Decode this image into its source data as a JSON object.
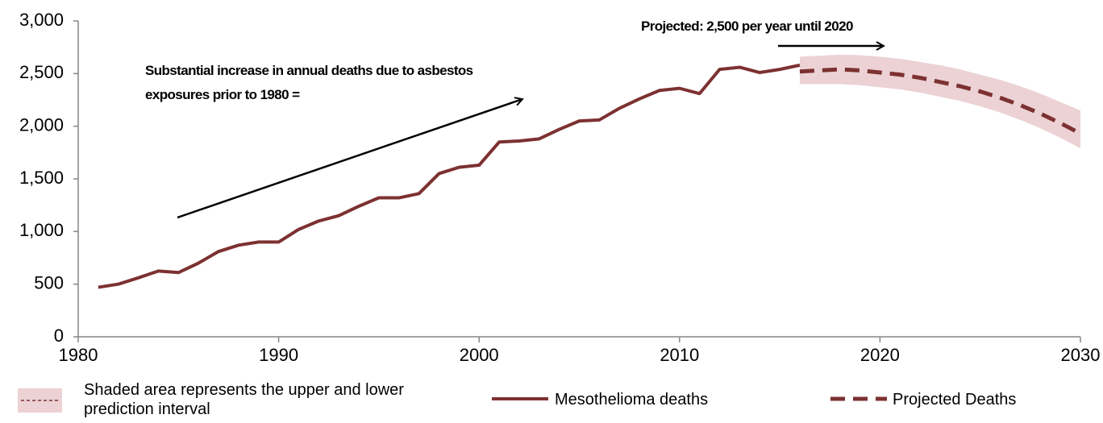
{
  "chart_data": {
    "type": "line",
    "x": [
      1981,
      1982,
      1983,
      1984,
      1985,
      1986,
      1987,
      1988,
      1989,
      1990,
      1991,
      1992,
      1993,
      1994,
      1995,
      1996,
      1997,
      1998,
      1999,
      2000,
      2001,
      2002,
      2003,
      2004,
      2005,
      2006,
      2007,
      2008,
      2009,
      2010,
      2011,
      2012,
      2013,
      2014,
      2015,
      2016,
      2017,
      2018,
      2019,
      2020,
      2021,
      2022,
      2023,
      2024,
      2025,
      2026,
      2027,
      2028,
      2029,
      2030
    ],
    "series": [
      {
        "name": "Mesothelioma deaths",
        "color": "#7d3131",
        "line_style": "solid",
        "values": [
          470,
          500,
          560,
          625,
          610,
          700,
          810,
          870,
          900,
          900,
          1020,
          1100,
          1150,
          1240,
          1320,
          1320,
          1360,
          1550,
          1610,
          1630,
          1850,
          1860,
          1880,
          1970,
          2050,
          2060,
          2170,
          2260,
          2340,
          2360,
          2310,
          2540,
          2560,
          2510,
          2540,
          2580,
          null,
          null,
          null,
          null,
          null,
          null,
          null,
          null,
          null,
          null,
          null,
          null,
          null,
          null
        ]
      },
      {
        "name": "Projected Deaths",
        "color": "#7d3131",
        "line_style": "dashed",
        "values": [
          null,
          null,
          null,
          null,
          null,
          null,
          null,
          null,
          null,
          null,
          null,
          null,
          null,
          null,
          null,
          null,
          null,
          null,
          null,
          null,
          null,
          null,
          null,
          null,
          null,
          null,
          null,
          null,
          null,
          null,
          null,
          null,
          null,
          null,
          null,
          2520,
          2530,
          2540,
          2530,
          2510,
          2490,
          2460,
          2420,
          2380,
          2330,
          2270,
          2200,
          2120,
          2030,
          1930
        ]
      }
    ],
    "interval": {
      "name": "Shaded area represents the upper and lower prediction interval",
      "color": "#ecd2d4",
      "upper": [
        null,
        null,
        null,
        null,
        null,
        null,
        null,
        null,
        null,
        null,
        null,
        null,
        null,
        null,
        null,
        null,
        null,
        null,
        null,
        null,
        null,
        null,
        null,
        null,
        null,
        null,
        null,
        null,
        null,
        null,
        null,
        null,
        null,
        null,
        null,
        2660,
        2670,
        2680,
        2675,
        2660,
        2640,
        2610,
        2580,
        2540,
        2490,
        2440,
        2380,
        2310,
        2230,
        2150
      ],
      "lower": [
        null,
        null,
        null,
        null,
        null,
        null,
        null,
        null,
        null,
        null,
        null,
        null,
        null,
        null,
        null,
        null,
        null,
        null,
        null,
        null,
        null,
        null,
        null,
        null,
        null,
        null,
        null,
        null,
        null,
        null,
        null,
        null,
        null,
        null,
        null,
        2400,
        2400,
        2400,
        2390,
        2370,
        2350,
        2320,
        2280,
        2240,
        2190,
        2130,
        2060,
        1980,
        1890,
        1790
      ]
    },
    "annotations": [
      "Substantial increase in annual deaths due to asbestos exposures prior to 1980 =",
      "Projected: 2,500 per year until 2020"
    ],
    "xlim": [
      1980,
      2030
    ],
    "xticks": [
      1980,
      1990,
      2000,
      2010,
      2020,
      2030
    ],
    "ylim": [
      0,
      3000
    ],
    "yticks": [
      0,
      500,
      {
        "value": 1000,
        "label": "1,000"
      },
      {
        "value": 1500,
        "label": "1,500"
      },
      {
        "value": 2000,
        "label": "2,000"
      },
      {
        "value": 2500,
        "label": "2,500"
      },
      {
        "value": 3000,
        "label": "3,000"
      }
    ],
    "grid": false
  }
}
